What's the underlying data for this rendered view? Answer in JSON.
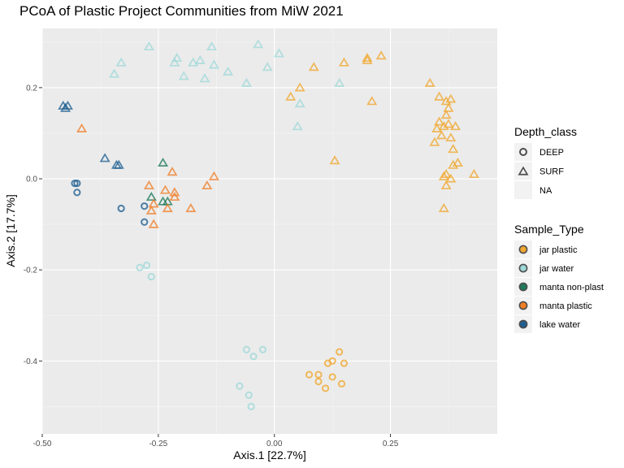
{
  "chart_data": {
    "type": "scatter",
    "title": "PCoA of Plastic Project Communities from MiW 2021",
    "xlabel": "Axis.1   [22.7%]",
    "ylabel": "Axis.2   [17.7%]",
    "xlim": [
      -0.5,
      0.48
    ],
    "ylim": [
      -0.56,
      0.33
    ],
    "x_ticks": [
      -0.5,
      -0.25,
      0.0,
      0.25
    ],
    "x_tick_labels": [
      "-0.50",
      "-0.25",
      "0.00",
      "0.25"
    ],
    "y_ticks": [
      -0.4,
      -0.2,
      0.0,
      0.2
    ],
    "y_tick_labels": [
      "-0.4",
      "-0.2",
      "0.0",
      "0.2"
    ],
    "grid": true,
    "legend_placement": "right",
    "shape_legend": {
      "title": "Depth_class",
      "entries": [
        {
          "label": "DEEP",
          "shape": "circle"
        },
        {
          "label": "SURF",
          "shape": "triangle"
        },
        {
          "label": "NA",
          "shape": "none"
        }
      ]
    },
    "color_legend": {
      "title": "Sample_Type",
      "entries": [
        {
          "label": "jar plastic",
          "color": "#f0a830"
        },
        {
          "label": "jar water",
          "color": "#9fd8d8"
        },
        {
          "label": "manta non-plast",
          "color": "#1f7a5a"
        },
        {
          "label": "manta plastic",
          "color": "#f07e26"
        },
        {
          "label": "lake water",
          "color": "#1f5f91"
        }
      ]
    },
    "series": [
      {
        "name": "jar plastic",
        "points": [
          {
            "x": 0.085,
            "y": 0.245,
            "shape": "triangle"
          },
          {
            "x": 0.15,
            "y": 0.255,
            "shape": "triangle"
          },
          {
            "x": 0.2,
            "y": 0.265,
            "shape": "triangle"
          },
          {
            "x": 0.2,
            "y": 0.26,
            "shape": "triangle"
          },
          {
            "x": 0.23,
            "y": 0.27,
            "shape": "triangle"
          },
          {
            "x": 0.055,
            "y": 0.2,
            "shape": "triangle"
          },
          {
            "x": 0.035,
            "y": 0.18,
            "shape": "triangle"
          },
          {
            "x": 0.21,
            "y": 0.17,
            "shape": "triangle"
          },
          {
            "x": 0.13,
            "y": 0.04,
            "shape": "triangle"
          },
          {
            "x": 0.335,
            "y": 0.21,
            "shape": "triangle"
          },
          {
            "x": 0.355,
            "y": 0.18,
            "shape": "triangle"
          },
          {
            "x": 0.37,
            "y": 0.17,
            "shape": "triangle"
          },
          {
            "x": 0.38,
            "y": 0.175,
            "shape": "triangle"
          },
          {
            "x": 0.375,
            "y": 0.155,
            "shape": "triangle"
          },
          {
            "x": 0.37,
            "y": 0.14,
            "shape": "triangle"
          },
          {
            "x": 0.355,
            "y": 0.125,
            "shape": "triangle"
          },
          {
            "x": 0.365,
            "y": 0.115,
            "shape": "triangle"
          },
          {
            "x": 0.375,
            "y": 0.12,
            "shape": "triangle"
          },
          {
            "x": 0.39,
            "y": 0.115,
            "shape": "triangle"
          },
          {
            "x": 0.35,
            "y": 0.11,
            "shape": "triangle"
          },
          {
            "x": 0.36,
            "y": 0.095,
            "shape": "triangle"
          },
          {
            "x": 0.38,
            "y": 0.09,
            "shape": "triangle"
          },
          {
            "x": 0.345,
            "y": 0.08,
            "shape": "triangle"
          },
          {
            "x": 0.385,
            "y": 0.065,
            "shape": "triangle"
          },
          {
            "x": 0.395,
            "y": 0.035,
            "shape": "triangle"
          },
          {
            "x": 0.385,
            "y": 0.03,
            "shape": "triangle"
          },
          {
            "x": 0.37,
            "y": 0.01,
            "shape": "triangle"
          },
          {
            "x": 0.365,
            "y": 0.005,
            "shape": "triangle"
          },
          {
            "x": 0.38,
            "y": 0.0,
            "shape": "triangle"
          },
          {
            "x": 0.43,
            "y": 0.01,
            "shape": "triangle"
          },
          {
            "x": 0.37,
            "y": -0.015,
            "shape": "triangle"
          },
          {
            "x": 0.365,
            "y": -0.065,
            "shape": "triangle"
          },
          {
            "x": 0.14,
            "y": -0.38,
            "shape": "circle"
          },
          {
            "x": 0.15,
            "y": -0.405,
            "shape": "circle"
          },
          {
            "x": 0.125,
            "y": -0.4,
            "shape": "circle"
          },
          {
            "x": 0.115,
            "y": -0.405,
            "shape": "circle"
          },
          {
            "x": 0.075,
            "y": -0.43,
            "shape": "circle"
          },
          {
            "x": 0.095,
            "y": -0.43,
            "shape": "circle"
          },
          {
            "x": 0.125,
            "y": -0.435,
            "shape": "circle"
          },
          {
            "x": 0.145,
            "y": -0.45,
            "shape": "circle"
          },
          {
            "x": 0.095,
            "y": -0.445,
            "shape": "circle"
          },
          {
            "x": 0.11,
            "y": -0.46,
            "shape": "circle"
          }
        ]
      },
      {
        "name": "jar water",
        "points": [
          {
            "x": -0.27,
            "y": 0.29,
            "shape": "triangle"
          },
          {
            "x": -0.135,
            "y": 0.29,
            "shape": "triangle"
          },
          {
            "x": -0.035,
            "y": 0.295,
            "shape": "triangle"
          },
          {
            "x": 0.01,
            "y": 0.275,
            "shape": "triangle"
          },
          {
            "x": -0.21,
            "y": 0.265,
            "shape": "triangle"
          },
          {
            "x": -0.16,
            "y": 0.26,
            "shape": "triangle"
          },
          {
            "x": -0.33,
            "y": 0.255,
            "shape": "triangle"
          },
          {
            "x": -0.215,
            "y": 0.255,
            "shape": "triangle"
          },
          {
            "x": -0.175,
            "y": 0.255,
            "shape": "triangle"
          },
          {
            "x": -0.13,
            "y": 0.25,
            "shape": "triangle"
          },
          {
            "x": -0.1,
            "y": 0.235,
            "shape": "triangle"
          },
          {
            "x": -0.015,
            "y": 0.245,
            "shape": "triangle"
          },
          {
            "x": -0.345,
            "y": 0.23,
            "shape": "triangle"
          },
          {
            "x": -0.195,
            "y": 0.225,
            "shape": "triangle"
          },
          {
            "x": -0.15,
            "y": 0.22,
            "shape": "triangle"
          },
          {
            "x": -0.06,
            "y": 0.21,
            "shape": "triangle"
          },
          {
            "x": 0.14,
            "y": 0.21,
            "shape": "triangle"
          },
          {
            "x": 0.055,
            "y": 0.165,
            "shape": "triangle"
          },
          {
            "x": 0.05,
            "y": 0.115,
            "shape": "triangle"
          },
          {
            "x": -0.29,
            "y": -0.195,
            "shape": "circle"
          },
          {
            "x": -0.275,
            "y": -0.19,
            "shape": "circle"
          },
          {
            "x": -0.265,
            "y": -0.215,
            "shape": "circle"
          },
          {
            "x": -0.06,
            "y": -0.375,
            "shape": "circle"
          },
          {
            "x": -0.025,
            "y": -0.375,
            "shape": "circle"
          },
          {
            "x": -0.045,
            "y": -0.39,
            "shape": "circle"
          },
          {
            "x": -0.075,
            "y": -0.455,
            "shape": "circle"
          },
          {
            "x": -0.055,
            "y": -0.475,
            "shape": "circle"
          },
          {
            "x": -0.05,
            "y": -0.5,
            "shape": "circle"
          }
        ]
      },
      {
        "name": "manta non-plast",
        "points": [
          {
            "x": -0.24,
            "y": 0.035,
            "shape": "triangle"
          },
          {
            "x": -0.265,
            "y": -0.04,
            "shape": "triangle"
          },
          {
            "x": -0.24,
            "y": -0.05,
            "shape": "triangle"
          },
          {
            "x": -0.23,
            "y": -0.05,
            "shape": "triangle"
          }
        ]
      },
      {
        "name": "manta plastic",
        "points": [
          {
            "x": -0.415,
            "y": 0.11,
            "shape": "triangle"
          },
          {
            "x": -0.22,
            "y": 0.015,
            "shape": "triangle"
          },
          {
            "x": -0.13,
            "y": 0.005,
            "shape": "triangle"
          },
          {
            "x": -0.27,
            "y": -0.015,
            "shape": "triangle"
          },
          {
            "x": -0.145,
            "y": -0.015,
            "shape": "triangle"
          },
          {
            "x": -0.235,
            "y": -0.025,
            "shape": "triangle"
          },
          {
            "x": -0.215,
            "y": -0.03,
            "shape": "triangle"
          },
          {
            "x": -0.215,
            "y": -0.04,
            "shape": "triangle"
          },
          {
            "x": -0.26,
            "y": -0.055,
            "shape": "triangle"
          },
          {
            "x": -0.23,
            "y": -0.065,
            "shape": "triangle"
          },
          {
            "x": -0.18,
            "y": -0.065,
            "shape": "triangle"
          },
          {
            "x": -0.265,
            "y": -0.07,
            "shape": "triangle"
          },
          {
            "x": -0.26,
            "y": -0.1,
            "shape": "triangle"
          }
        ]
      },
      {
        "name": "lake water",
        "points": [
          {
            "x": -0.455,
            "y": 0.16,
            "shape": "triangle"
          },
          {
            "x": -0.445,
            "y": 0.16,
            "shape": "triangle"
          },
          {
            "x": -0.45,
            "y": 0.155,
            "shape": "triangle"
          },
          {
            "x": -0.365,
            "y": 0.045,
            "shape": "triangle"
          },
          {
            "x": -0.34,
            "y": 0.03,
            "shape": "triangle"
          },
          {
            "x": -0.335,
            "y": 0.03,
            "shape": "triangle"
          },
          {
            "x": -0.43,
            "y": -0.01,
            "shape": "circle"
          },
          {
            "x": -0.425,
            "y": -0.01,
            "shape": "circle"
          },
          {
            "x": -0.425,
            "y": -0.03,
            "shape": "circle"
          },
          {
            "x": -0.33,
            "y": -0.065,
            "shape": "circle"
          },
          {
            "x": -0.28,
            "y": -0.06,
            "shape": "circle"
          },
          {
            "x": -0.28,
            "y": -0.095,
            "shape": "circle"
          }
        ]
      }
    ]
  }
}
